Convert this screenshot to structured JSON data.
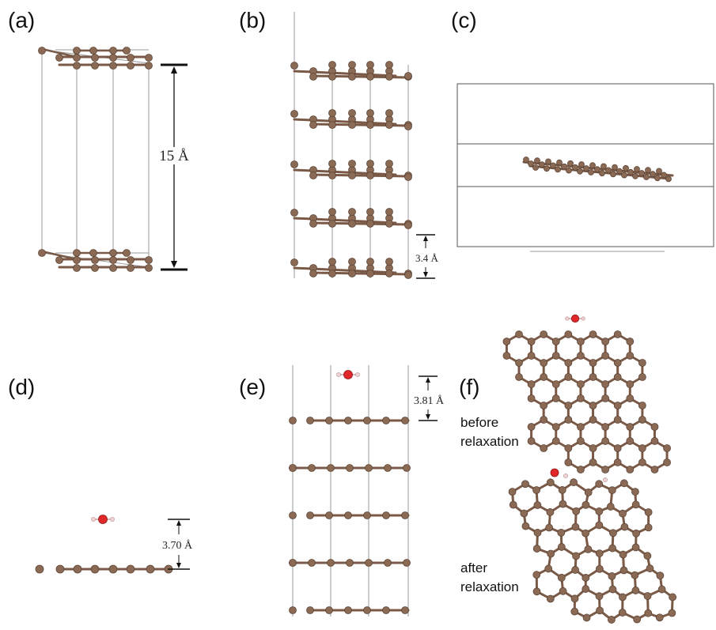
{
  "panels": {
    "a": {
      "label": "(a)",
      "dimension": "15 Å"
    },
    "b": {
      "label": "(b)",
      "dimension": "3.4 Å"
    },
    "c": {
      "label": "(c)"
    },
    "d": {
      "label": "(d)",
      "dimension": "3.70 Å"
    },
    "e": {
      "label": "(e)",
      "dimension": "3.81 Å"
    },
    "f": {
      "label": "(f)",
      "before_line1": "before",
      "before_line2": "relaxation",
      "after_line1": "after",
      "after_line2": "relaxation"
    }
  },
  "colors": {
    "carbon": "#8a6a55",
    "carbon_dark": "#5e4536",
    "bond": "#7a5a47",
    "oxygen": "#e0282a",
    "hydrogen": "#f1d3d3",
    "cell_line": "#9a9a9a",
    "dim_line": "#111111"
  }
}
